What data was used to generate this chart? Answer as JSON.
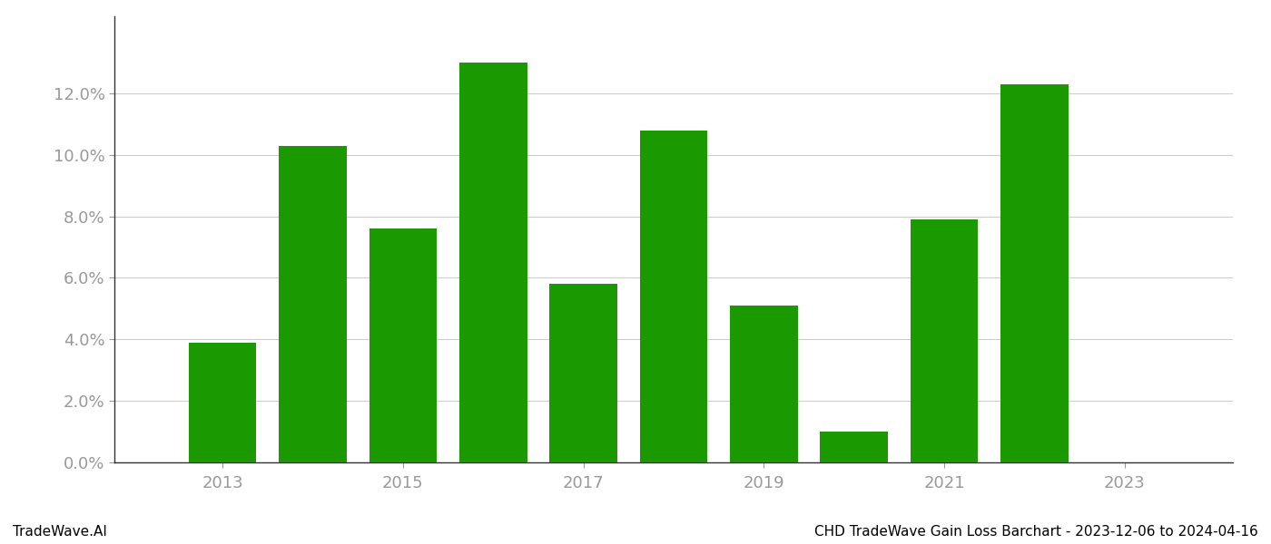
{
  "years": [
    2013,
    2014,
    2015,
    2016,
    2017,
    2018,
    2019,
    2020,
    2021,
    2022
  ],
  "values": [
    0.039,
    0.103,
    0.076,
    0.13,
    0.058,
    0.108,
    0.051,
    0.01,
    0.079,
    0.123
  ],
  "bar_color": "#1a9a00",
  "background_color": "#ffffff",
  "grid_color": "#cccccc",
  "axis_label_color": "#999999",
  "spine_color": "#333333",
  "title_left": "TradeWave.AI",
  "title_right": "CHD TradeWave Gain Loss Barchart - 2023-12-06 to 2024-04-16",
  "ylim": [
    0,
    0.145
  ],
  "yticks": [
    0.0,
    0.02,
    0.04,
    0.06,
    0.08,
    0.1,
    0.12
  ],
  "xtick_years": [
    2013,
    2015,
    2017,
    2019,
    2021,
    2023
  ],
  "bar_width": 0.75,
  "xlim": [
    2011.8,
    2024.2
  ],
  "figsize": [
    14.0,
    6.0
  ],
  "dpi": 100,
  "font_size_ticks": 13,
  "font_size_footer": 11
}
